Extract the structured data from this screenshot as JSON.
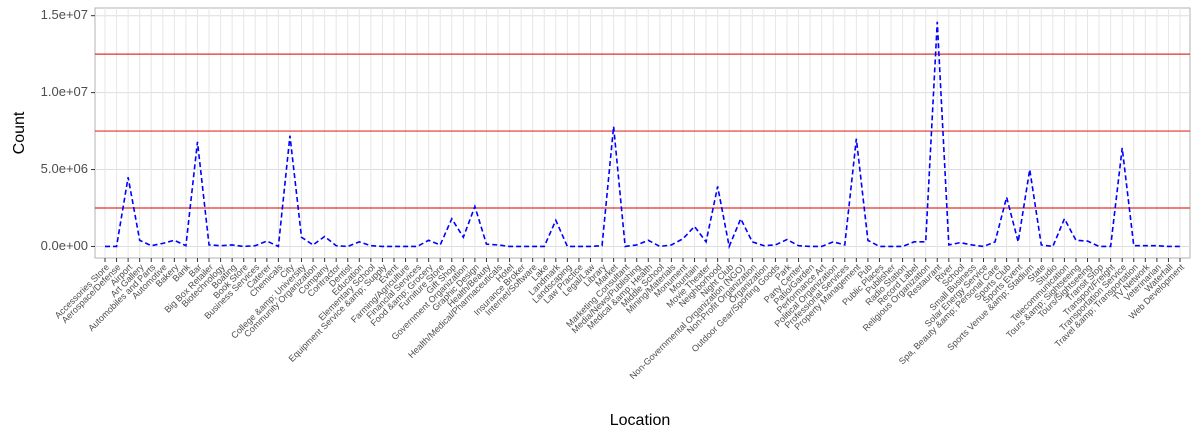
{
  "chart_data": {
    "type": "line",
    "x_label": "Location",
    "y_label": "Count",
    "categories": [
      "Accessories Store",
      "Aerospace/Defense",
      "Airport",
      "Art Gallery",
      "Automobiles and Parts",
      "Automotive",
      "Bakery",
      "Bank",
      "Bar",
      "Big Box Retailer",
      "Biotechnology",
      "Boating",
      "Book Store",
      "Business Services",
      "Caterer",
      "Chemicals",
      "City",
      "College &amp; University",
      "Community Organization",
      "Company",
      "Contractor",
      "Dentist",
      "Education",
      "Elementary School",
      "Equipment Service &amp; Supply",
      "Event",
      "Farming/Agriculture",
      "Financial Services",
      "Food &amp; Grocery",
      "Furniture Store",
      "Gift Shop",
      "Government Organization",
      "Graphic Design",
      "Health/Beauty",
      "Health/Medical/Pharmaceuticals",
      "Hotel",
      "Insurance Broker",
      "Internet/Software",
      "Lake",
      "Landmark",
      "Landscaping",
      "Law Practice",
      "Legal/Law",
      "Library",
      "Market",
      "Marketing Consultant",
      "Media/News/Publishing",
      "Medical &amp; Health",
      "Middle School",
      "Mining/Materials",
      "Monument",
      "Mountain",
      "Movie Theater",
      "Neighborhood",
      "Night Club",
      "Non-Governmental Organization (NGO)",
      "Non-Profit Organization",
      "Organization",
      "Outdoor Gear/Sporting Goods",
      "Park",
      "Party Center",
      "Patio/Garden",
      "Performance Art",
      "Political Organization",
      "Professional Services",
      "Property Management",
      "Pub",
      "Public Places",
      "Publisher",
      "Radio Station",
      "Record Label",
      "Religious Organization",
      "Restaurant",
      "River",
      "School",
      "Small Business",
      "Solar Energy Service",
      "Spa, Beauty &amp; Personal Care",
      "Sports Club",
      "Sports Event",
      "Sports Venue &amp; Stadium",
      "State",
      "Studio",
      "Telecommunication",
      "Tours &amp; Sightseeing",
      "Tours/Sightseeing",
      "Transit Stop",
      "Transport/Freight",
      "Transportation Service",
      "Travel &amp; Transportation",
      "TV Network",
      "Veterinarian",
      "Waterfall",
      "Web Development"
    ],
    "series": [
      {
        "color": "#0000ff",
        "values": [
          0,
          0,
          4500000,
          400000,
          50000,
          200000,
          400000,
          50000,
          6800000,
          100000,
          50000,
          100000,
          0,
          50000,
          350000,
          0,
          7200000,
          600000,
          100000,
          650000,
          50000,
          0,
          300000,
          50000,
          0,
          0,
          0,
          0,
          400000,
          100000,
          1800000,
          600000,
          2600000,
          150000,
          100000,
          0,
          0,
          0,
          0,
          1700000,
          0,
          0,
          0,
          50000,
          7800000,
          0,
          100000,
          400000,
          0,
          100000,
          500000,
          1300000,
          300000,
          3900000,
          0,
          1800000,
          300000,
          50000,
          100000,
          450000,
          50000,
          0,
          0,
          300000,
          100000,
          7000000,
          400000,
          0,
          0,
          0,
          300000,
          300000,
          14600000,
          100000,
          250000,
          100000,
          0,
          300000,
          3200000,
          300000,
          5000000,
          100000,
          0,
          1800000,
          400000,
          350000,
          0,
          0,
          6400000,
          50000,
          50000,
          50000,
          0,
          0
        ]
      }
    ],
    "hlines": [
      2500000,
      7500000,
      12500000
    ],
    "hline_color": "#e0302e",
    "ylim": [
      -750000,
      15500000
    ],
    "yticks": [
      {
        "value": 0,
        "label": "0.0e+00"
      },
      {
        "value": 5000000,
        "label": "5.0e+06"
      },
      {
        "value": 10000000,
        "label": "1.0e+07"
      },
      {
        "value": 15000000,
        "label": "1.5e+07"
      }
    ],
    "grid": true
  }
}
